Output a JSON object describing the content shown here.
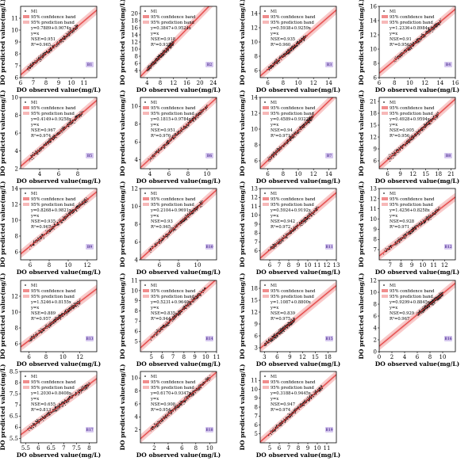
{
  "legend_labels": {
    "model": "M1",
    "confidence": "95% confidence band",
    "prediction": "95% prediction band",
    "line": "y=x"
  },
  "colors": {
    "points": "#1a1a1a",
    "fit_line": "#e03030",
    "band": "#f6b8b8",
    "badge_bg": "#d6c8ef",
    "badge_text": "#5a3b9b"
  },
  "chart_data": [
    {
      "type": "scatter",
      "panel_label": "B1",
      "xlabel": "DO observed value(mg/L)",
      "ylabel": "DO predicted value(mg/L)",
      "xlim": [
        6,
        12
      ],
      "ylim": [
        6,
        12
      ],
      "xticks": [
        6,
        7,
        8,
        9,
        10,
        11
      ],
      "yticks": [
        6,
        7,
        8,
        9,
        10,
        11
      ],
      "equation": "y=0.7889+0.9074x",
      "nse": "NSE=0.951",
      "r2": "R²=0.965",
      "slope": 0.9074,
      "intercept": 0.7889,
      "cloud": [
        6.5,
        10.5
      ]
    },
    {
      "type": "scatter",
      "panel_label": "B2",
      "xlabel": "DO observed value(mg/L)",
      "ylabel": "DO predicted value(mg/L)",
      "xlim": [
        2,
        25
      ],
      "ylim": [
        2,
        22
      ],
      "xticks": [
        4,
        8,
        12,
        16,
        20,
        24
      ],
      "yticks": [
        4,
        6,
        8,
        10,
        12,
        14,
        16,
        18,
        20
      ],
      "equation": "y=0.3847+0.9524x",
      "nse": "NSE=0.918",
      "r2": "R²=0.932",
      "slope": 0.9524,
      "intercept": 0.3847,
      "cloud": [
        4,
        12
      ]
    },
    {
      "type": "scatter",
      "panel_label": "B3",
      "xlabel": "DO observed value(mg/L)",
      "ylabel": "DO predicted value(mg/L)",
      "xlim": [
        5,
        15
      ],
      "ylim": [
        5,
        15
      ],
      "xticks": [
        6,
        8,
        10,
        12,
        14
      ],
      "yticks": [
        6,
        8,
        10,
        12,
        14
      ],
      "equation": "y=0.5938+0.9259x",
      "nse": "NSE=0.935",
      "r2": "R²=0.960",
      "slope": 0.9259,
      "intercept": 0.5938,
      "cloud": [
        6,
        11
      ]
    },
    {
      "type": "scatter",
      "panel_label": "B4",
      "xlabel": "DO observed value(mg/L)",
      "ylabel": "DO predicted value(mg/L)",
      "xlim": [
        6,
        16
      ],
      "ylim": [
        6,
        16
      ],
      "xticks": [
        6,
        8,
        10,
        12,
        14,
        16
      ],
      "yticks": [
        6,
        8,
        10,
        12,
        14,
        16
      ],
      "equation": "y=1.2336+0.8984x",
      "nse": "NSE=0.91",
      "r2": "R²=0.956",
      "slope": 0.8984,
      "intercept": 1.2336,
      "cloud": [
        8,
        14
      ]
    },
    {
      "type": "scatter",
      "panel_label": "B5",
      "xlabel": "DO observed value(mg/L)",
      "ylabel": "DO predicted value(mg/L)",
      "xlim": [
        2,
        10
      ],
      "ylim": [
        2,
        10
      ],
      "xticks": [
        4,
        6,
        8
      ],
      "yticks": [
        2,
        4,
        6,
        8,
        10
      ],
      "equation": "y=0.4149+0.9258x",
      "nse": "NSE=0.967",
      "r2": "R²=0.974",
      "slope": 0.9258,
      "intercept": 0.4149,
      "cloud": [
        3,
        8.5
      ]
    },
    {
      "type": "scatter",
      "panel_label": "B6",
      "xlabel": "DO observed value(mg/L)",
      "ylabel": "DO predicted value(mg/L)",
      "xlim": [
        3,
        11
      ],
      "ylim": [
        3,
        11
      ],
      "xticks": [
        4,
        6,
        8,
        10
      ],
      "yticks": [
        4,
        6,
        8,
        10
      ],
      "equation": "y=0.1815+0.9784x",
      "nse": "NSE=0.951",
      "r2": "R²=0.976",
      "slope": 0.9784,
      "intercept": 0.1815,
      "cloud": [
        4,
        10
      ]
    },
    {
      "type": "scatter",
      "panel_label": "B7",
      "xlabel": "DO observed value(mg/L)",
      "ylabel": "DO predicted value(mg/L)",
      "xlim": [
        5,
        15
      ],
      "ylim": [
        5,
        14
      ],
      "xticks": [
        6,
        8,
        10,
        12,
        14
      ],
      "yticks": [
        6,
        8,
        10,
        12,
        14
      ],
      "equation": "y=0.4589+0.9322x",
      "nse": "NSE=0.94",
      "r2": "R²=0.971",
      "slope": 0.9322,
      "intercept": 0.4589,
      "cloud": [
        6,
        12
      ]
    },
    {
      "type": "scatter",
      "panel_label": "B8",
      "xlabel": "DO observed value(mg/L)",
      "ylabel": "DO predicted value(mg/L)",
      "xlim": [
        4,
        22
      ],
      "ylim": [
        4,
        22
      ],
      "xticks": [
        6,
        9,
        12,
        15,
        18,
        21
      ],
      "yticks": [
        6,
        9,
        12,
        15,
        18,
        21
      ],
      "equation": "y=0.4928+0.9594x",
      "nse": "NSE=0.905",
      "r2": "R²=0.956",
      "slope": 0.9594,
      "intercept": 0.4928,
      "cloud": [
        6,
        18
      ]
    },
    {
      "type": "scatter",
      "panel_label": "B9",
      "xlabel": "DO observed value(mg/L)",
      "ylabel": "DO predicted value(mg/L)",
      "xlim": [
        5,
        13
      ],
      "ylim": [
        5,
        14
      ],
      "xticks": [
        6,
        8,
        10,
        12
      ],
      "yticks": [
        6,
        8,
        10,
        12,
        14
      ],
      "equation": "y=0.8268+0.9821x",
      "nse": "NSE=0.935",
      "r2": "R²=0.967",
      "slope": 0.9821,
      "intercept": 0.8268,
      "cloud": [
        6,
        12
      ]
    },
    {
      "type": "scatter",
      "panel_label": "B10",
      "xlabel": "DO observed value(mg/L)",
      "ylabel": "DO predicted value(mg/L)",
      "xlim": [
        4,
        12
      ],
      "ylim": [
        4,
        12
      ],
      "xticks": [
        6,
        8,
        10
      ],
      "yticks": [
        4,
        6,
        8,
        10,
        12
      ],
      "equation": "y=0.2104+0.9691x",
      "nse": "NSE=0.93",
      "r2": "R²=0.965",
      "slope": 0.9691,
      "intercept": 0.2104,
      "cloud": [
        5,
        10.5
      ]
    },
    {
      "type": "scatter",
      "panel_label": "B11",
      "xlabel": "DO observed value(mg/L)",
      "ylabel": "DO predicted value(mg/L)",
      "xlim": [
        5,
        13
      ],
      "ylim": [
        5,
        13
      ],
      "xticks": [
        6,
        7,
        8,
        9,
        10,
        11,
        12,
        13
      ],
      "yticks": [
        6,
        7,
        8,
        9,
        10,
        11,
        12,
        13
      ],
      "equation": "y=0.5924+0.9192x",
      "nse": "NSE=0.942",
      "r2": "R²=0.972",
      "slope": 0.9192,
      "intercept": 0.5924,
      "cloud": [
        6,
        11
      ]
    },
    {
      "type": "scatter",
      "panel_label": "B12",
      "xlabel": "DO observed value(mg/L)",
      "ylabel": "DO predicted value(mg/L)",
      "xlim": [
        6,
        13
      ],
      "ylim": [
        6,
        13
      ],
      "xticks": [
        7,
        8,
        9,
        10,
        11,
        12
      ],
      "yticks": [
        7,
        8,
        9,
        10,
        11,
        12,
        13
      ],
      "equation": "y=1.4256+0.8258x",
      "nse": "NSE=0.928",
      "r2": "R²=0.971",
      "slope": 0.8258,
      "intercept": 1.4256,
      "cloud": [
        6.5,
        11.5
      ]
    },
    {
      "type": "scatter",
      "panel_label": "B13",
      "xlabel": "DO observed value(mg/L)",
      "ylabel": "DO predicted value(mg/L)",
      "xlim": [
        5,
        14
      ],
      "ylim": [
        5,
        14
      ],
      "xticks": [
        6,
        8,
        10,
        12
      ],
      "yticks": [
        6,
        8,
        10,
        12
      ],
      "equation": "y=1.5246+0.8155x",
      "nse": "NSE=0.889",
      "r2": "R²=0.957",
      "slope": 0.8155,
      "intercept": 1.5246,
      "cloud": [
        6,
        12
      ]
    },
    {
      "type": "scatter",
      "panel_label": "B14",
      "xlabel": "DO observed value(mg/L)",
      "ylabel": "DO predicted value(mg/L)",
      "xlim": [
        4,
        11
      ],
      "ylim": [
        4,
        11
      ],
      "xticks": [
        5,
        6,
        7,
        8,
        9,
        10,
        11
      ],
      "yticks": [
        5,
        6,
        7,
        8,
        9,
        10,
        11
      ],
      "equation": "y=0.5231+0.9640x",
      "nse": "NSE=0.835",
      "r2": "R²=0.944",
      "slope": 0.964,
      "intercept": 0.5231,
      "cloud": [
        5,
        10
      ]
    },
    {
      "type": "scatter",
      "panel_label": "B15",
      "xlabel": "DO observed value(mg/L)",
      "ylabel": "DO predicted value(mg/L)",
      "xlim": [
        2,
        20
      ],
      "ylim": [
        2,
        20
      ],
      "xticks": [
        3,
        6,
        9,
        12,
        15,
        18
      ],
      "yticks": [
        3,
        6,
        9,
        12,
        15,
        18
      ],
      "equation": "y=1.1087+0.8800x",
      "nse": "NSE=0.839",
      "r2": "R²=0.975",
      "slope": 0.88,
      "intercept": 1.1087,
      "cloud": [
        3,
        10
      ]
    },
    {
      "type": "scatter",
      "panel_label": "B16",
      "xlabel": "DO observed value(mg/L)",
      "ylabel": "DO predicted value(mg/L)",
      "xlim": [
        0,
        12
      ],
      "ylim": [
        0,
        12
      ],
      "xticks": [
        0,
        2,
        4,
        6,
        8,
        10
      ],
      "yticks": [
        0,
        2,
        4,
        6,
        8,
        10,
        12
      ],
      "equation": "y=0.9299+0.8845x",
      "nse": "NSE=0.929",
      "r2": "R²=0.967",
      "slope": 0.8845,
      "intercept": 0.9299,
      "cloud": [
        6,
        10
      ]
    },
    {
      "type": "scatter",
      "panel_label": "B17",
      "xlabel": "DO observed value(mg/L)",
      "ylabel": "DO predicted value(mg/L)",
      "xlim": [
        5.3,
        8.3
      ],
      "ylim": [
        5.3,
        8.5
      ],
      "xticks": [
        5.5,
        6.0,
        6.5,
        7.0,
        7.5,
        8.0
      ],
      "yticks": [
        5.5,
        6.0,
        6.5,
        7.0,
        7.5,
        8.0,
        8.5
      ],
      "equation": "y=1.2030+0.8408x",
      "nse": "NSE=0.655",
      "r2": "R²=0.813",
      "slope": 0.8408,
      "intercept": 1.203,
      "cloud": [
        5.6,
        8
      ]
    },
    {
      "type": "scatter",
      "panel_label": "B18",
      "xlabel": "DO observed value(mg/L)",
      "ylabel": "DO predicted value(mg/L)",
      "xlim": [
        0,
        11
      ],
      "ylim": [
        0,
        11
      ],
      "xticks": [
        2,
        4,
        6,
        8,
        10
      ],
      "yticks": [
        2,
        4,
        6,
        8,
        10
      ],
      "equation": "y=0.6170+0.9347x",
      "nse": "NSE=0.908",
      "r2": "R²=0.954",
      "slope": 0.9347,
      "intercept": 0.617,
      "cloud": [
        1.5,
        10
      ]
    },
    {
      "type": "scatter",
      "panel_label": "B19",
      "xlabel": "DO observed value(mg/L)",
      "ylabel": "DO predicted value(mg/L)",
      "xlim": [
        4,
        12
      ],
      "ylim": [
        4,
        12
      ],
      "xticks": [
        5,
        6,
        7,
        8,
        9,
        10,
        11
      ],
      "yticks": [
        5,
        6,
        7,
        8,
        9,
        10,
        11
      ],
      "equation": "y=0.3188+0.9445x",
      "nse": "NSE=0.947",
      "r2": "R²=0.974",
      "slope": 0.9445,
      "intercept": 0.3188,
      "cloud": [
        5,
        10.5
      ]
    }
  ]
}
